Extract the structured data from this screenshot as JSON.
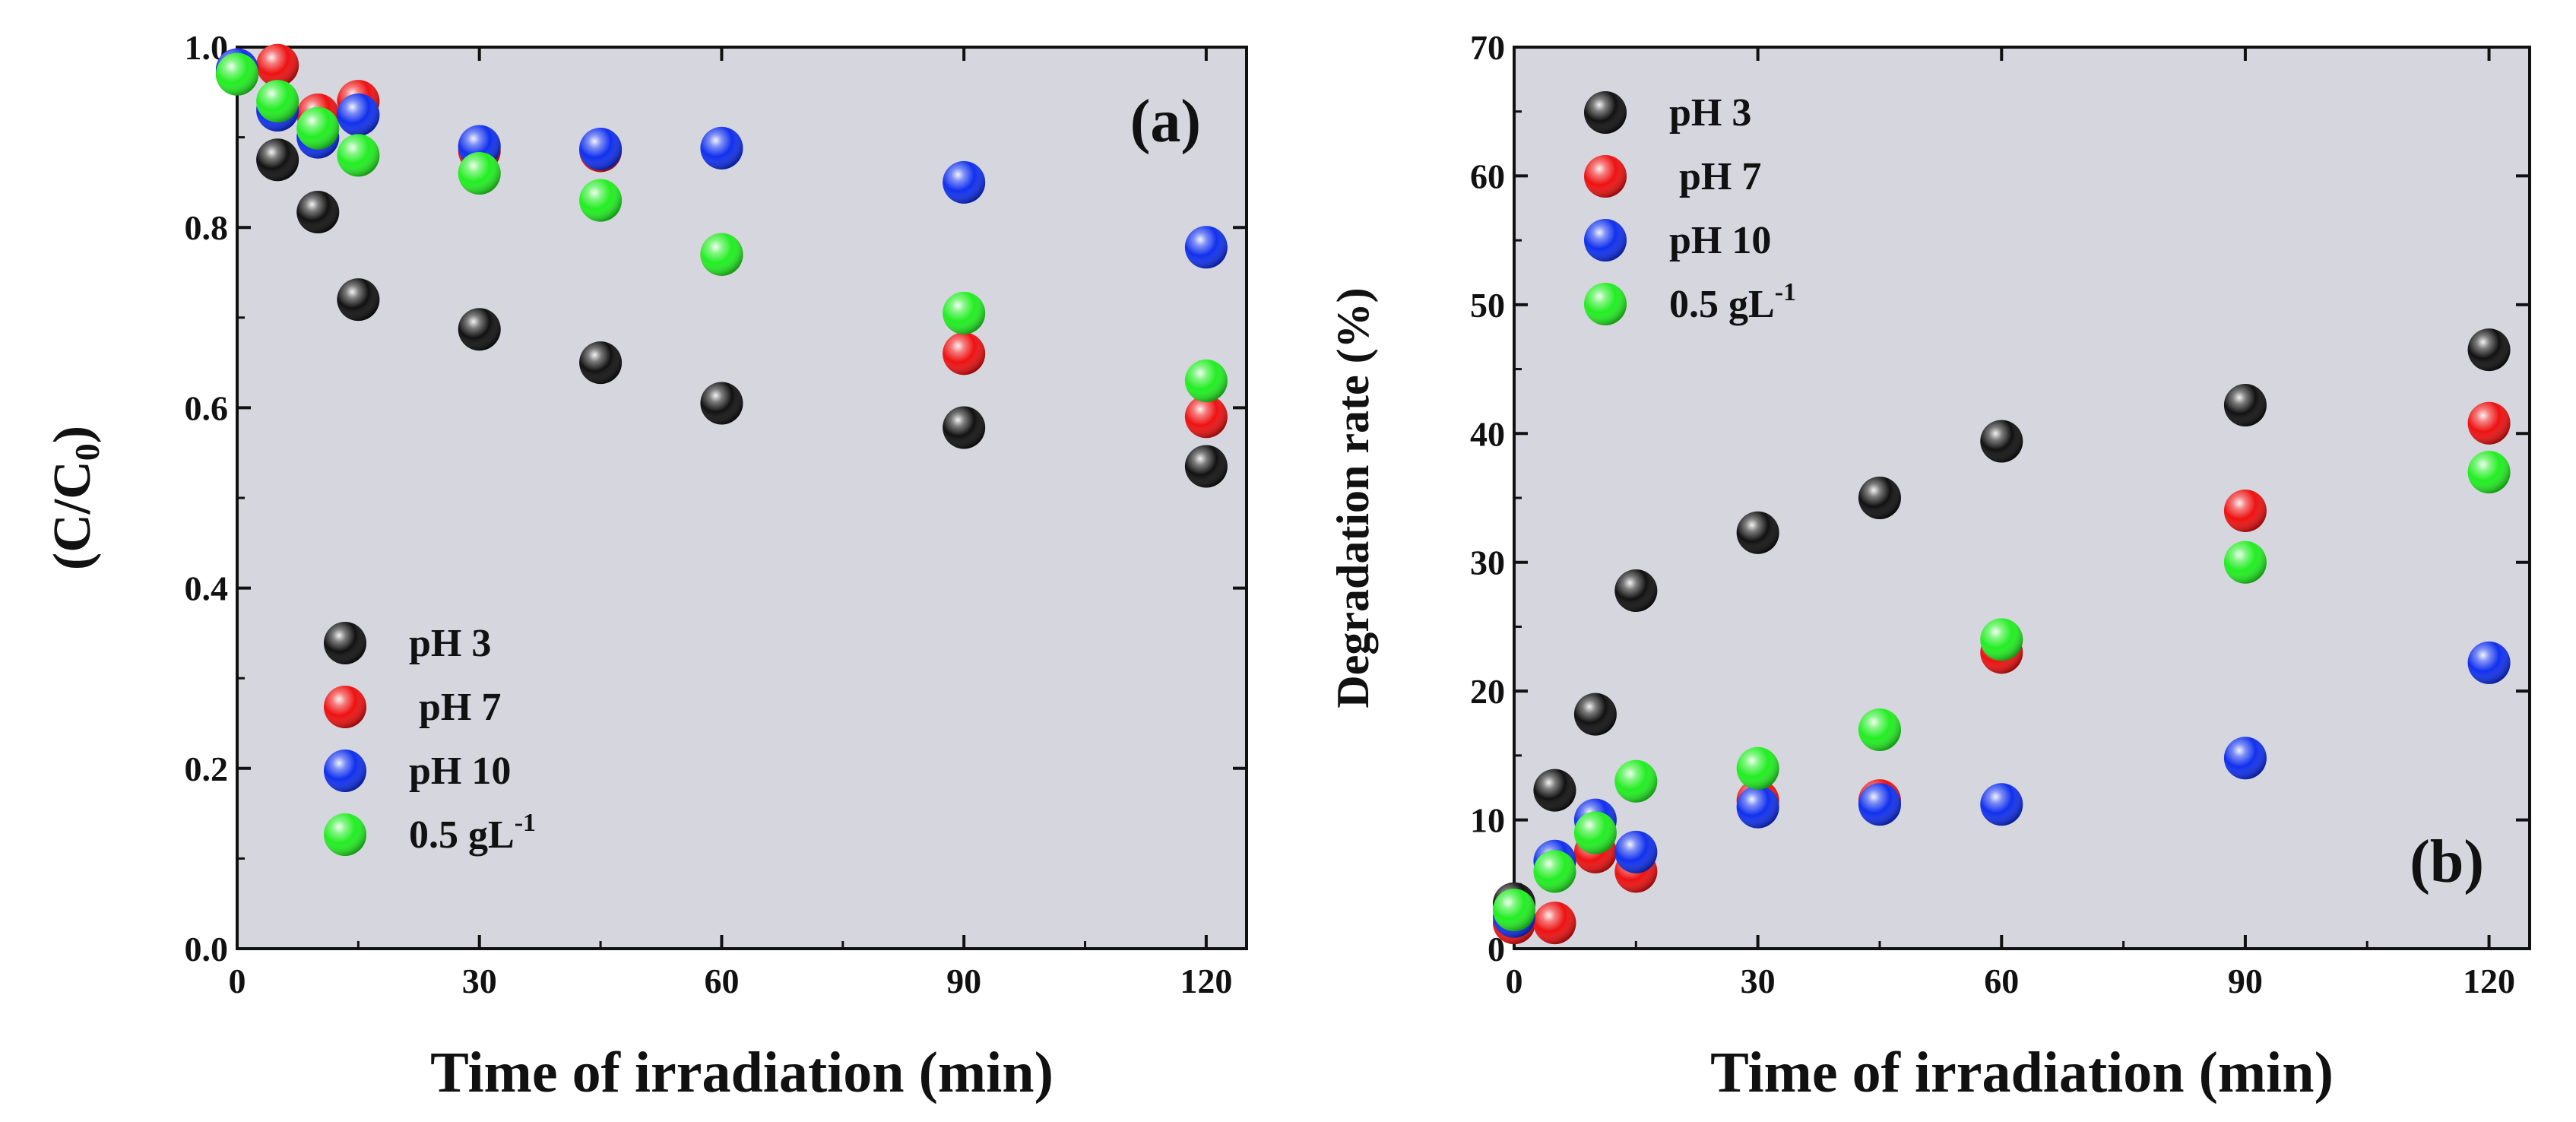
{
  "chart_data": [
    {
      "type": "scatter",
      "panel_label": "(a)",
      "xlabel": "Time of irradiation (min)",
      "ylabel": "(C/C0)",
      "ylabel_main": "(C/C",
      "ylabel_sub": "0",
      "ylabel_end": ")",
      "xlim": [
        0,
        125
      ],
      "ylim": [
        0,
        1.0
      ],
      "xticks": [
        0,
        30,
        60,
        90,
        120
      ],
      "yticks": [
        0.0,
        0.2,
        0.4,
        0.6,
        0.8,
        1.0
      ],
      "ytick_labels": [
        "0.0",
        "0.2",
        "0.4",
        "0.6",
        "0.8",
        "1.0"
      ],
      "legend_position": "bottom-left",
      "series": [
        {
          "name": "pH 3",
          "color": "#111111",
          "points": [
            [
              0,
              0.97
            ],
            [
              5,
              0.875
            ],
            [
              10,
              0.817
            ],
            [
              15,
              0.72
            ],
            [
              30,
              0.687
            ],
            [
              45,
              0.65
            ],
            [
              60,
              0.605
            ],
            [
              90,
              0.578
            ],
            [
              120,
              0.535
            ]
          ]
        },
        {
          "name": " pH 7",
          "color": "#ee1111",
          "points": [
            [
              0,
              0.975
            ],
            [
              5,
              0.98
            ],
            [
              10,
              0.925
            ],
            [
              15,
              0.94
            ],
            [
              30,
              0.885
            ],
            [
              45,
              0.885
            ],
            [
              60,
              0.77
            ],
            [
              90,
              0.66
            ],
            [
              120,
              0.59
            ]
          ]
        },
        {
          "name": "pH 10",
          "color": "#1030ee",
          "points": [
            [
              0,
              0.975
            ],
            [
              5,
              0.93
            ],
            [
              10,
              0.9
            ],
            [
              15,
              0.925
            ],
            [
              30,
              0.89
            ],
            [
              45,
              0.887
            ],
            [
              60,
              0.888
            ],
            [
              90,
              0.85
            ],
            [
              120,
              0.778
            ]
          ]
        },
        {
          "name": "0.5 gL",
          "sup": "-1",
          "color": "#22ee22",
          "points": [
            [
              0,
              0.97
            ],
            [
              5,
              0.94
            ],
            [
              10,
              0.91
            ],
            [
              15,
              0.88
            ],
            [
              30,
              0.86
            ],
            [
              45,
              0.83
            ],
            [
              60,
              0.77
            ],
            [
              90,
              0.705
            ],
            [
              120,
              0.63
            ]
          ]
        }
      ]
    },
    {
      "type": "scatter",
      "panel_label": "(b)",
      "xlabel": "Time of irradiation (min)",
      "ylabel": "Degradation rate  (%)",
      "xlim": [
        0,
        125
      ],
      "ylim": [
        0,
        70
      ],
      "xticks": [
        0,
        30,
        60,
        90,
        120
      ],
      "yticks": [
        0,
        10,
        20,
        30,
        40,
        50,
        60,
        70
      ],
      "ytick_labels": [
        "0",
        "10",
        "20",
        "30",
        "40",
        "50",
        "60",
        "70"
      ],
      "legend_position": "top-left",
      "series": [
        {
          "name": "pH 3",
          "color": "#111111",
          "points": [
            [
              0,
              3.5
            ],
            [
              5,
              12.3
            ],
            [
              10,
              18.2
            ],
            [
              15,
              27.8
            ],
            [
              30,
              32.3
            ],
            [
              45,
              35.0
            ],
            [
              60,
              39.4
            ],
            [
              90,
              42.2
            ],
            [
              120,
              46.5
            ]
          ]
        },
        {
          "name": " pH 7",
          "color": "#ee1111",
          "points": [
            [
              0,
              2.0
            ],
            [
              5,
              2.0
            ],
            [
              10,
              7.5
            ],
            [
              15,
              6.0
            ],
            [
              30,
              11.5
            ],
            [
              45,
              11.5
            ],
            [
              60,
              23.0
            ],
            [
              90,
              34.0
            ],
            [
              120,
              40.8
            ]
          ]
        },
        {
          "name": "pH 10",
          "color": "#1030ee",
          "points": [
            [
              0,
              2.5
            ],
            [
              5,
              6.8
            ],
            [
              10,
              10.0
            ],
            [
              15,
              7.5
            ],
            [
              30,
              11.0
            ],
            [
              45,
              11.2
            ],
            [
              60,
              11.2
            ],
            [
              90,
              14.8
            ],
            [
              120,
              22.2
            ]
          ]
        },
        {
          "name": "0.5 gL",
          "sup": "-1",
          "color": "#22ee22",
          "points": [
            [
              0,
              3.0
            ],
            [
              5,
              6.0
            ],
            [
              10,
              9.0
            ],
            [
              15,
              13.0
            ],
            [
              30,
              14.0
            ],
            [
              45,
              17.0
            ],
            [
              60,
              24.0
            ],
            [
              90,
              30.0
            ],
            [
              120,
              37.0
            ]
          ]
        }
      ]
    }
  ]
}
